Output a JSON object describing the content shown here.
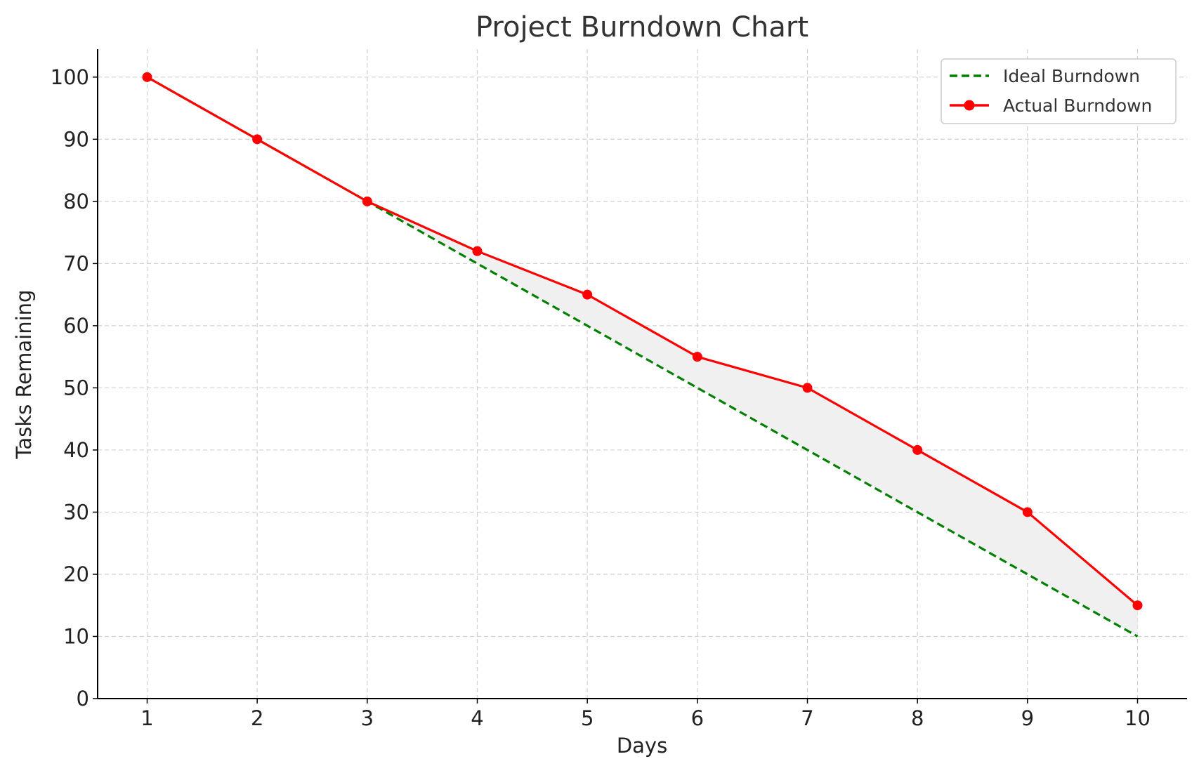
{
  "chart_data": {
    "type": "line",
    "title": "Project Burndown Chart",
    "xlabel": "Days",
    "ylabel": "Tasks Remaining",
    "x": [
      1,
      2,
      3,
      4,
      5,
      6,
      7,
      8,
      9,
      10
    ],
    "x_tick_labels": [
      "1",
      "2",
      "3",
      "4",
      "5",
      "6",
      "7",
      "8",
      "9",
      "10"
    ],
    "y_ticks": [
      0,
      10,
      20,
      30,
      40,
      50,
      60,
      70,
      80,
      90,
      100
    ],
    "y_tick_labels": [
      "0",
      "10",
      "20",
      "30",
      "40",
      "50",
      "60",
      "70",
      "80",
      "90",
      "100"
    ],
    "xlim": [
      0.55,
      10.45
    ],
    "ylim": [
      0,
      104.5
    ],
    "grid": true,
    "legend_position": "top-right",
    "series": [
      {
        "name": "Ideal Burndown",
        "values": [
          100,
          90,
          80,
          70,
          60,
          50,
          40,
          30,
          20,
          10
        ],
        "color": "#008000",
        "style": "dashed",
        "markers": false
      },
      {
        "name": "Actual Burndown",
        "values": [
          100,
          90,
          80,
          72,
          65,
          55,
          50,
          40,
          30,
          15
        ],
        "color": "#ff0000",
        "style": "solid",
        "markers": true
      }
    ],
    "fill_between": {
      "series": [
        "Ideal Burndown",
        "Actual Burndown"
      ],
      "color": "#f0f0f0"
    }
  }
}
